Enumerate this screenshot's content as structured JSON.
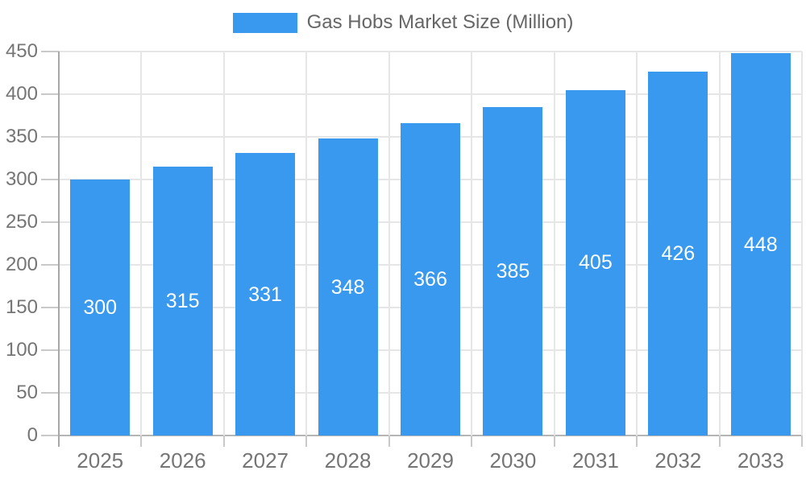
{
  "chart_data": {
    "type": "bar",
    "title": "",
    "legend": {
      "label": "Gas Hobs Market Size (Million)",
      "position": "top"
    },
    "categories": [
      "2025",
      "2026",
      "2027",
      "2028",
      "2029",
      "2030",
      "2031",
      "2032",
      "2033"
    ],
    "series": [
      {
        "name": "Gas Hobs Market Size (Million)",
        "values": [
          300,
          315,
          331,
          348,
          366,
          385,
          405,
          426,
          448
        ]
      }
    ],
    "xlabel": "",
    "ylabel": "",
    "ylim": [
      0,
      450
    ],
    "yticks": [
      0,
      50,
      100,
      150,
      200,
      250,
      300,
      350,
      400,
      450
    ],
    "grid": true,
    "legend_on": true,
    "colors": {
      "bar": "#3899ee",
      "value_label": "#ffffff",
      "axis_text": "#757575",
      "legend_text": "#666666",
      "gridline": "#e6e6e6",
      "axis_line": "#a8a8a8",
      "tick": "#c9c9c9",
      "baseline": "#b5b5b5"
    }
  }
}
